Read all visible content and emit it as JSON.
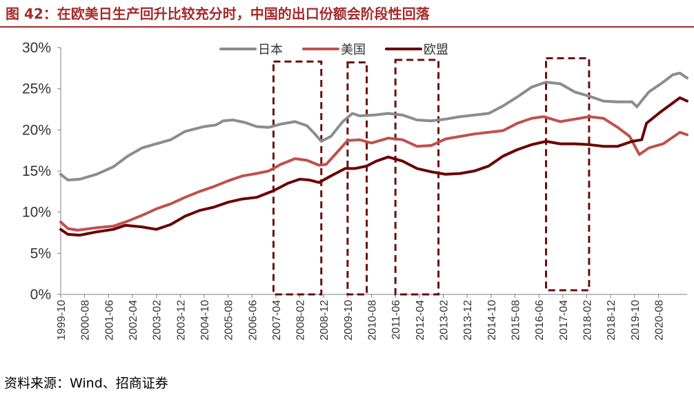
{
  "title": "图 42：在欧美日生产回升比较充分时，中国的出口份额会阶段性回落",
  "source": "资料来源：Wind、招商证券",
  "colors": {
    "title": "#a52a2a",
    "axis": "#7f7f7f",
    "box": "#6b0c0c",
    "japan": "#8c8c8c",
    "usa": "#c0504d",
    "europe": "#6b0000"
  },
  "chart_data": {
    "type": "line",
    "ylim": [
      0,
      30
    ],
    "y_ticks": [
      "0%",
      "5%",
      "10%",
      "15%",
      "20%",
      "25%",
      "30%"
    ],
    "x_range": [
      "1999-10",
      "2021-08"
    ],
    "x_ticks": [
      "1999-10",
      "2000-08",
      "2001-06",
      "2002-04",
      "2003-02",
      "2003-12",
      "2004-10",
      "2005-08",
      "2006-06",
      "2007-04",
      "2008-02",
      "2008-12",
      "2009-10",
      "2010-08",
      "2011-06",
      "2012-04",
      "2013-02",
      "2013-12",
      "2014-10",
      "2015-08",
      "2016-06",
      "2017-04",
      "2018-02",
      "2018-12",
      "2019-10",
      "2020-08"
    ],
    "legend_position": "top-center",
    "series": [
      {
        "name": "日本",
        "color": "#8c8c8c",
        "points": [
          [
            "1999-10",
            14.6
          ],
          [
            "2000-01",
            13.9
          ],
          [
            "2000-06",
            14.0
          ],
          [
            "2001-01",
            14.6
          ],
          [
            "2001-08",
            15.5
          ],
          [
            "2002-02",
            16.8
          ],
          [
            "2002-08",
            17.8
          ],
          [
            "2003-02",
            18.3
          ],
          [
            "2003-08",
            18.8
          ],
          [
            "2004-02",
            19.8
          ],
          [
            "2004-10",
            20.4
          ],
          [
            "2005-03",
            20.6
          ],
          [
            "2005-06",
            21.1
          ],
          [
            "2005-10",
            21.2
          ],
          [
            "2006-03",
            20.9
          ],
          [
            "2006-08",
            20.4
          ],
          [
            "2007-01",
            20.3
          ],
          [
            "2007-06",
            20.7
          ],
          [
            "2007-12",
            21.0
          ],
          [
            "2008-05",
            20.5
          ],
          [
            "2008-08",
            19.6
          ],
          [
            "2008-11",
            18.6
          ],
          [
            "2009-03",
            19.2
          ],
          [
            "2009-08",
            21.0
          ],
          [
            "2009-12",
            22.0
          ],
          [
            "2010-03",
            21.7
          ],
          [
            "2010-09",
            21.8
          ],
          [
            "2011-03",
            22.0
          ],
          [
            "2011-09",
            21.8
          ],
          [
            "2012-03",
            21.2
          ],
          [
            "2012-09",
            21.1
          ],
          [
            "2013-03",
            21.3
          ],
          [
            "2013-09",
            21.6
          ],
          [
            "2014-03",
            21.8
          ],
          [
            "2014-09",
            22.0
          ],
          [
            "2015-03",
            22.9
          ],
          [
            "2015-09",
            24.0
          ],
          [
            "2016-03",
            25.2
          ],
          [
            "2016-09",
            25.8
          ],
          [
            "2017-03",
            25.6
          ],
          [
            "2017-09",
            24.6
          ],
          [
            "2018-03",
            24.1
          ],
          [
            "2018-09",
            23.5
          ],
          [
            "2019-03",
            23.4
          ],
          [
            "2019-09",
            23.4
          ],
          [
            "2019-11",
            22.8
          ],
          [
            "2020-04",
            24.6
          ],
          [
            "2020-10",
            25.8
          ],
          [
            "2021-02",
            26.7
          ],
          [
            "2021-05",
            26.9
          ],
          [
            "2021-08",
            26.3
          ]
        ]
      },
      {
        "name": "美国",
        "color": "#c0504d",
        "points": [
          [
            "1999-10",
            8.8
          ],
          [
            "2000-01",
            8.0
          ],
          [
            "2000-05",
            7.8
          ],
          [
            "2001-01",
            8.1
          ],
          [
            "2001-08",
            8.3
          ],
          [
            "2002-02",
            8.9
          ],
          [
            "2002-08",
            9.6
          ],
          [
            "2003-02",
            10.4
          ],
          [
            "2003-08",
            11.0
          ],
          [
            "2004-02",
            11.8
          ],
          [
            "2004-08",
            12.5
          ],
          [
            "2005-02",
            13.1
          ],
          [
            "2005-08",
            13.8
          ],
          [
            "2006-02",
            14.4
          ],
          [
            "2006-08",
            14.7
          ],
          [
            "2007-01",
            15.0
          ],
          [
            "2007-06",
            15.8
          ],
          [
            "2007-12",
            16.5
          ],
          [
            "2008-05",
            16.3
          ],
          [
            "2008-10",
            15.7
          ],
          [
            "2009-01",
            15.8
          ],
          [
            "2009-06",
            17.4
          ],
          [
            "2009-10",
            18.7
          ],
          [
            "2010-03",
            18.8
          ],
          [
            "2010-08",
            18.4
          ],
          [
            "2011-03",
            19.0
          ],
          [
            "2011-09",
            18.8
          ],
          [
            "2012-03",
            18.0
          ],
          [
            "2012-09",
            18.1
          ],
          [
            "2013-03",
            18.9
          ],
          [
            "2013-09",
            19.2
          ],
          [
            "2014-03",
            19.5
          ],
          [
            "2014-09",
            19.7
          ],
          [
            "2015-03",
            19.9
          ],
          [
            "2015-09",
            20.8
          ],
          [
            "2016-03",
            21.4
          ],
          [
            "2016-08",
            21.6
          ],
          [
            "2017-03",
            21.0
          ],
          [
            "2017-09",
            21.3
          ],
          [
            "2018-03",
            21.6
          ],
          [
            "2018-09",
            21.4
          ],
          [
            "2019-03",
            20.3
          ],
          [
            "2019-08",
            19.2
          ],
          [
            "2019-12",
            17.0
          ],
          [
            "2020-04",
            17.8
          ],
          [
            "2020-10",
            18.3
          ],
          [
            "2021-05",
            19.7
          ],
          [
            "2021-08",
            19.4
          ]
        ]
      },
      {
        "name": "欧盟",
        "color": "#6b0000",
        "points": [
          [
            "1999-10",
            7.9
          ],
          [
            "2000-01",
            7.3
          ],
          [
            "2000-06",
            7.2
          ],
          [
            "2001-01",
            7.6
          ],
          [
            "2001-08",
            7.9
          ],
          [
            "2002-01",
            8.4
          ],
          [
            "2002-08",
            8.2
          ],
          [
            "2003-02",
            7.9
          ],
          [
            "2003-08",
            8.5
          ],
          [
            "2004-02",
            9.5
          ],
          [
            "2004-08",
            10.2
          ],
          [
            "2005-02",
            10.6
          ],
          [
            "2005-08",
            11.2
          ],
          [
            "2006-02",
            11.6
          ],
          [
            "2006-08",
            11.8
          ],
          [
            "2007-03",
            12.6
          ],
          [
            "2007-09",
            13.5
          ],
          [
            "2008-02",
            14.0
          ],
          [
            "2008-06",
            13.9
          ],
          [
            "2008-10",
            13.6
          ],
          [
            "2009-03",
            14.4
          ],
          [
            "2009-09",
            15.3
          ],
          [
            "2010-01",
            15.3
          ],
          [
            "2010-06",
            15.6
          ],
          [
            "2010-10",
            16.2
          ],
          [
            "2011-03",
            16.7
          ],
          [
            "2011-09",
            16.2
          ],
          [
            "2012-03",
            15.3
          ],
          [
            "2012-09",
            14.9
          ],
          [
            "2013-03",
            14.6
          ],
          [
            "2013-09",
            14.7
          ],
          [
            "2014-03",
            15.0
          ],
          [
            "2014-09",
            15.6
          ],
          [
            "2015-03",
            16.8
          ],
          [
            "2015-09",
            17.6
          ],
          [
            "2016-03",
            18.2
          ],
          [
            "2016-09",
            18.6
          ],
          [
            "2017-03",
            18.3
          ],
          [
            "2017-09",
            18.3
          ],
          [
            "2018-03",
            18.2
          ],
          [
            "2018-09",
            18.0
          ],
          [
            "2019-03",
            18.0
          ],
          [
            "2019-09",
            18.6
          ],
          [
            "2020-01",
            18.8
          ],
          [
            "2020-03",
            20.8
          ],
          [
            "2020-09",
            22.2
          ],
          [
            "2021-05",
            23.9
          ],
          [
            "2021-08",
            23.5
          ]
        ]
      }
    ],
    "highlight_boxes": [
      {
        "from": "2007-03",
        "to": "2008-11",
        "y_top": 28.3,
        "y_bottom": 0
      },
      {
        "from": "2009-10",
        "to": "2010-06",
        "y_top": 28.2,
        "y_bottom": 0
      },
      {
        "from": "2011-06",
        "to": "2012-12",
        "y_top": 28.5,
        "y_bottom": 0
      },
      {
        "from": "2016-09",
        "to": "2018-03",
        "y_top": 28.7,
        "y_bottom": 0.5
      }
    ]
  }
}
